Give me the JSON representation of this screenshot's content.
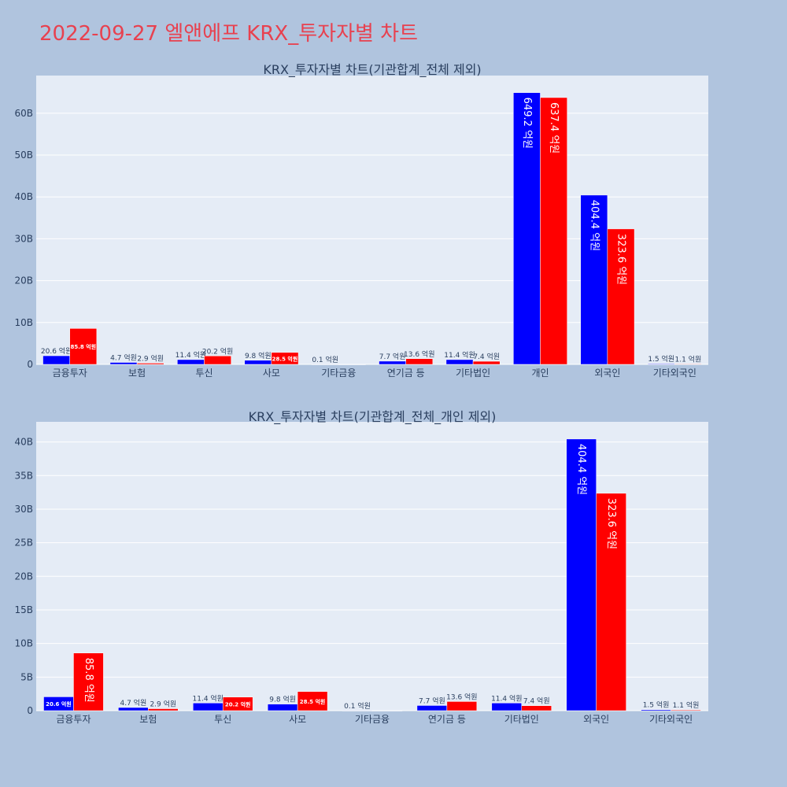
{
  "page": {
    "title": "2022-09-27 엘앤에프 KRX_투자자별 차트"
  },
  "colors": {
    "background": "#b0c4de",
    "plot_bg": "#e5ecf6",
    "grid": "#ffffff",
    "buy": "#0000ff",
    "sell": "#ff0000",
    "title": "#e8414f",
    "text": "#2a3f5f"
  },
  "chart_data": [
    {
      "type": "bar",
      "title": "KRX_투자자별 차트(기관합계_전체 제외)",
      "xlabel": "",
      "ylabel": "",
      "ylim": [
        0,
        69
      ],
      "yticks": [
        0,
        10,
        20,
        30,
        40,
        50,
        60
      ],
      "ytick_labels": [
        "0",
        "10B",
        "20B",
        "30B",
        "40B",
        "50B",
        "60B"
      ],
      "grid": true,
      "legend": "none",
      "categories": [
        "금융투자",
        "보험",
        "투신",
        "사모",
        "기타금융",
        "연기금 등",
        "기타법인",
        "개인",
        "외국인",
        "기타외국인"
      ],
      "series": [
        {
          "color": "#0000ff",
          "values": [
            2.06,
            0.47,
            1.14,
            0.98,
            0.01,
            0.77,
            1.14,
            64.92,
            40.44,
            0.15
          ],
          "labels": [
            "20.6 억원",
            "4.7 억원",
            "11.4 억원",
            "9.8 억원",
            "0.1 억원",
            "7.7 억원",
            "11.4 억원",
            "649.2 억원",
            "404.4 억원",
            "1.5 억원"
          ]
        },
        {
          "color": "#ff0000",
          "values": [
            8.58,
            0.29,
            2.02,
            2.85,
            0,
            1.36,
            0.74,
            63.74,
            32.36,
            0.11
          ],
          "labels": [
            "85.8 억원",
            "2.9 억원",
            "20.2 억원",
            "28.5 억원",
            "",
            "13.6 억원",
            "7.4 억원",
            "637.4 억원",
            "323.6 억원",
            "1.1 억원"
          ]
        }
      ]
    },
    {
      "type": "bar",
      "title": "KRX_투자자별 차트(기관합계_전체_개인 제외)",
      "xlabel": "",
      "ylabel": "",
      "ylim": [
        0,
        43
      ],
      "yticks": [
        0,
        5,
        10,
        15,
        20,
        25,
        30,
        35,
        40
      ],
      "ytick_labels": [
        "0",
        "5B",
        "10B",
        "15B",
        "20B",
        "25B",
        "30B",
        "35B",
        "40B"
      ],
      "grid": true,
      "legend": "none",
      "categories": [
        "금융투자",
        "보험",
        "투신",
        "사모",
        "기타금융",
        "연기금 등",
        "기타법인",
        "외국인",
        "기타외국인"
      ],
      "series": [
        {
          "color": "#0000ff",
          "values": [
            2.06,
            0.47,
            1.14,
            0.98,
            0.01,
            0.77,
            1.14,
            40.44,
            0.15
          ],
          "labels": [
            "20.6 억원",
            "4.7 억원",
            "11.4 억원",
            "9.8 억원",
            "0.1 억원",
            "7.7 억원",
            "11.4 억원",
            "404.4 억원",
            "1.5 억원"
          ]
        },
        {
          "color": "#ff0000",
          "values": [
            8.58,
            0.29,
            2.02,
            2.85,
            0,
            1.36,
            0.74,
            32.36,
            0.11
          ],
          "labels": [
            "85.8 억원",
            "2.9 억원",
            "20.2 억원",
            "28.5 억원",
            "",
            "13.6 억원",
            "7.4 억원",
            "323.6 억원",
            "1.1 억원"
          ]
        }
      ]
    }
  ]
}
